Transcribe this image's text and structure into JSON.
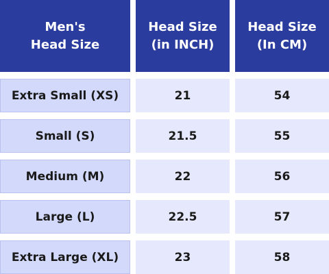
{
  "table": {
    "header": [
      [
        "Men's",
        "Head Size"
      ],
      [
        "Head Size",
        "(in INCH)"
      ],
      [
        "Head Size",
        "(In CM)"
      ]
    ],
    "rows": [
      [
        "Extra Small (XS)",
        21,
        54
      ],
      [
        "Small (S)",
        21.5,
        55
      ],
      [
        "Medium (M)",
        22,
        56
      ],
      [
        "Large (L)",
        22.5,
        57
      ],
      [
        "Extra Large (XL)",
        23,
        58
      ]
    ]
  }
}
